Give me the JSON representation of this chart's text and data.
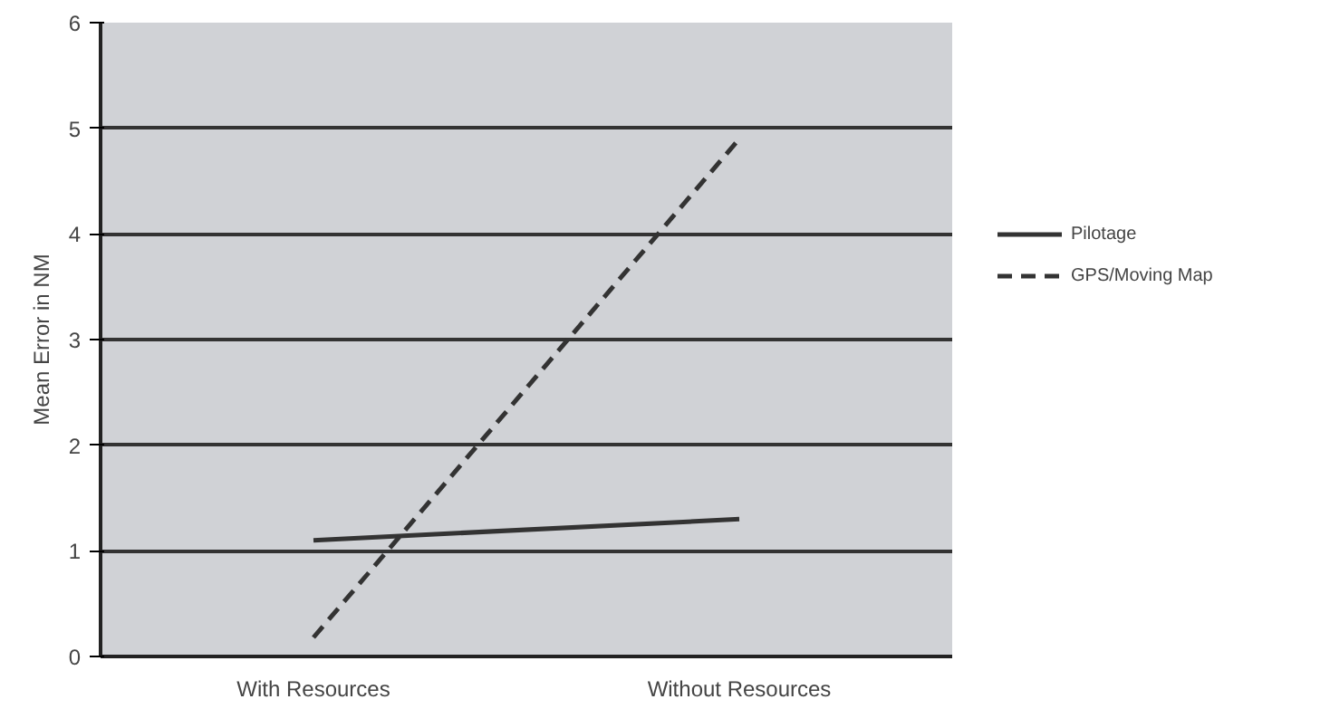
{
  "chart_data": {
    "type": "line",
    "ylabel": "Mean Error in NM",
    "categories": [
      "With Resources",
      "Without Resources"
    ],
    "ylim": [
      0,
      6
    ],
    "yticks": [
      0,
      1,
      2,
      3,
      4,
      5,
      6
    ],
    "grid": "y",
    "legend": "right",
    "marker": "none",
    "series": [
      {
        "name": "Pilotage",
        "color": "#333333",
        "values": [
          1.1,
          1.3
        ],
        "line_style": "solid"
      },
      {
        "name": "GPS/Moving Map",
        "color": "#333333",
        "values": [
          0.18,
          4.9
        ],
        "line_style": "dashed"
      }
    ]
  }
}
